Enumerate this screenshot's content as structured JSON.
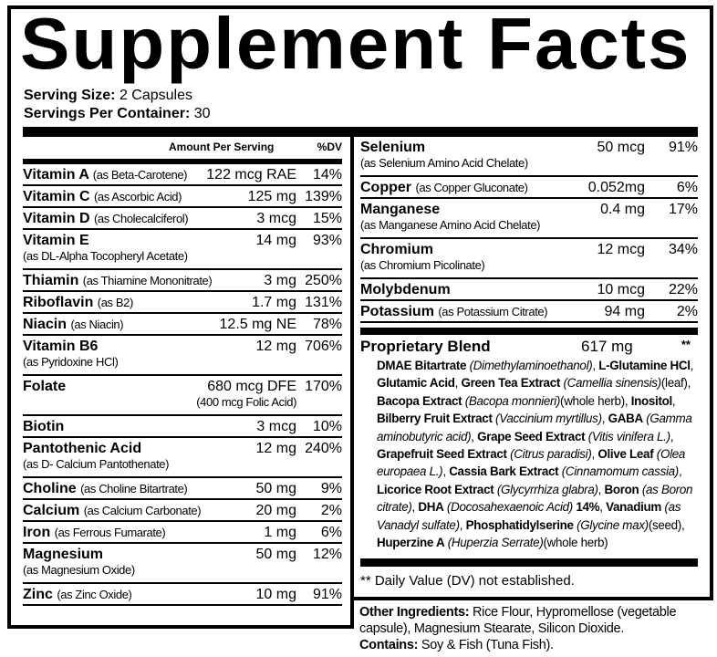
{
  "title": "Supplement Facts",
  "serving": {
    "size_label": "Serving Size:",
    "size_value": "2 Capsules",
    "per_container_label": "Servings Per Container:",
    "per_container_value": "30"
  },
  "table_header": {
    "amount": "Amount Per Serving",
    "dv": "%DV"
  },
  "left_rows": [
    {
      "name": "Vitamin A",
      "note": "(as Beta-Carotene)",
      "amount": "122 mcg RAE",
      "dv": "14%"
    },
    {
      "name": "Vitamin C",
      "note": "(as Ascorbic Acid)",
      "amount": "125 mg",
      "dv": "139%"
    },
    {
      "name": "Vitamin D",
      "note": "(as Cholecalciferol)",
      "amount": "3 mcg",
      "dv": "15%"
    },
    {
      "name": "Vitamin E",
      "note2": "(as DL-Alpha Tocopheryl Acetate)",
      "amount": "14 mg",
      "dv": "93%"
    },
    {
      "name": "Thiamin",
      "note": "(as Thiamine Mononitrate)",
      "amount": "3 mg",
      "dv": "250%"
    },
    {
      "name": "Riboflavin",
      "note": "(as B2)",
      "amount": "1.7 mg",
      "dv": "131%"
    },
    {
      "name": "Niacin",
      "note": "(as Niacin)",
      "amount": "12.5 mg NE",
      "dv": "78%"
    },
    {
      "name": "Vitamin B6",
      "note2": "(as Pyridoxine HCl)",
      "amount": "12 mg",
      "dv": "706%"
    },
    {
      "name": "Folate",
      "amount": "680 mcg DFE",
      "amount2": "(400 mcg Folic Acid)",
      "dv": "170%"
    },
    {
      "name": "Biotin",
      "amount": "3 mcg",
      "dv": "10%"
    },
    {
      "name": "Pantothenic Acid",
      "note2": "(as D- Calcium Pantothenate)",
      "amount": "12 mg",
      "dv": "240%"
    },
    {
      "name": "Choline",
      "note": "(as Choline Bitartrate)",
      "amount": "50 mg",
      "dv": "9%"
    },
    {
      "name": "Calcium",
      "note": "(as Calcium Carbonate)",
      "amount": "20 mg",
      "dv": "2%"
    },
    {
      "name": "Iron",
      "note": "(as Ferrous Fumarate)",
      "amount": "1 mg",
      "dv": "6%"
    },
    {
      "name": "Magnesium",
      "note2": "(as Magnesium Oxide)",
      "amount": "50 mg",
      "dv": "12%"
    },
    {
      "name": "Zinc",
      "note": "(as Zinc Oxide)",
      "amount": "10 mg",
      "dv": "91%"
    }
  ],
  "right_rows": [
    {
      "name": "Selenium",
      "note2": "(as Selenium Amino Acid Chelate)",
      "amount": "50 mcg",
      "dv": "91%"
    },
    {
      "name": "Copper",
      "note": "(as Copper Gluconate)",
      "amount": "0.052mg",
      "dv": "6%"
    },
    {
      "name": "Manganese",
      "note2": "(as Manganese Amino Acid Chelate)",
      "amount": "0.4 mg",
      "dv": "17%"
    },
    {
      "name": "Chromium",
      "note2": "(as Chromium Picolinate)",
      "amount": "12 mcg",
      "dv": "34%"
    },
    {
      "name": "Molybdenum",
      "amount": "10 mcg",
      "dv": "22%"
    },
    {
      "name": "Potassium",
      "note": "(as Potassium Citrate)",
      "amount": "94 mg",
      "dv": "2%"
    }
  ],
  "blend": {
    "name": "Proprietary Blend",
    "amount": "617 mg",
    "dv": "**",
    "ingredients": [
      {
        "b": "DMAE Bitartrate",
        "i": "(Dimethylaminoethanol)"
      },
      {
        "b": "L-Glutamine HCl"
      },
      {
        "b": "Glutamic Acid"
      },
      {
        "b": "Green Tea Extract",
        "i": "(Camellia sinensis)",
        "p": "(leaf)"
      },
      {
        "b": "Bacopa Extract",
        "i": "(Bacopa monnieri)",
        "p": "(whole herb)"
      },
      {
        "b": "Inositol"
      },
      {
        "b": "Bilberry Fruit Extract",
        "i": "(Vaccinium myrtillus)"
      },
      {
        "b": "GABA",
        "i": "(Gamma aminobutyric acid)"
      },
      {
        "b": "Grape Seed Extract",
        "i": "(Vitis vinifera L.)"
      },
      {
        "b": "Grapefruit Seed Extract",
        "i": "(Citrus paradisi)"
      },
      {
        "b": "Olive Leaf",
        "i": "(Olea europaea L.)"
      },
      {
        "b": "Cassia Bark Extract",
        "i": "(Cinnamomum cassia)"
      },
      {
        "b": "Licorice Root Extract",
        "i": "(Glycyrrhiza glabra)"
      },
      {
        "b": "Boron",
        "i": "(as Boron citrate)"
      },
      {
        "b": "DHA",
        "i": "(Docosahexaenoic Acid)",
        "b2": "14%"
      },
      {
        "b": "Vanadium",
        "i": "(as Vanadyl sulfate)"
      },
      {
        "b": "Phosphatidylserine",
        "i": "(Glycine max)",
        "p": "(seed)"
      },
      {
        "b": "Huperzine A",
        "i": "(Huperzia Serrate)",
        "p": "(whole herb)",
        "last": true
      }
    ]
  },
  "footnote": "** Daily Value (DV) not established.",
  "other": {
    "label": "Other Ingredients:",
    "text": " Rice Flour, Hypromellose (vegetable capsule), Magnesium Stearate, Silicon Dioxide.",
    "contains_label": "Contains:",
    "contains_text": " Soy & Fish (Tuna Fish)."
  }
}
